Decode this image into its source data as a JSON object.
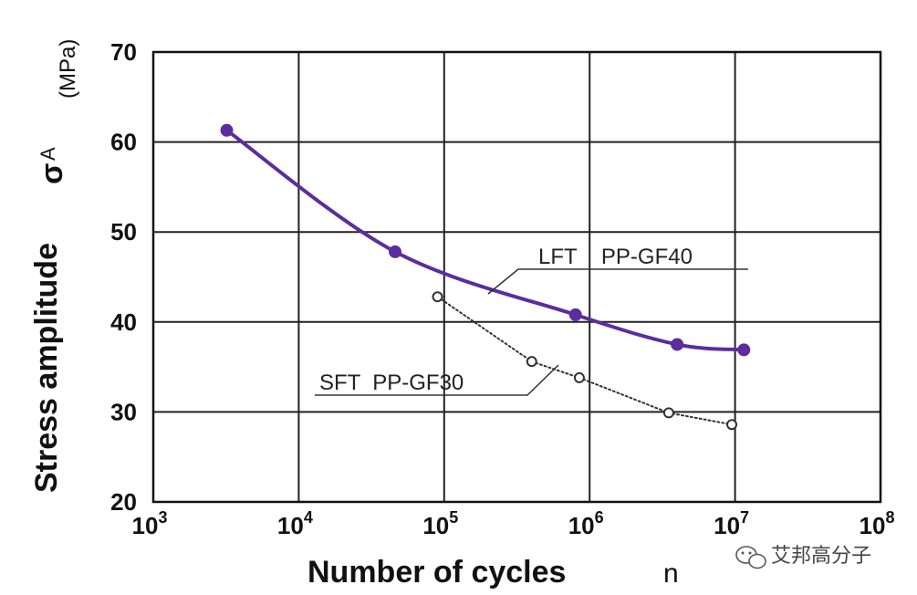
{
  "chart_data": {
    "type": "line",
    "xscale": "log",
    "xlim": [
      1000,
      100000000
    ],
    "ylim": [
      20,
      70
    ],
    "x_ticks": [
      {
        "value": 1000,
        "base": "10",
        "exp": "3"
      },
      {
        "value": 10000,
        "base": "10",
        "exp": "4"
      },
      {
        "value": 100000,
        "base": "10",
        "exp": "5"
      },
      {
        "value": 1000000,
        "base": "10",
        "exp": "6"
      },
      {
        "value": 10000000,
        "base": "10",
        "exp": "7"
      },
      {
        "value": 100000000,
        "base": "10",
        "exp": "8"
      }
    ],
    "y_ticks": [
      {
        "value": 20,
        "label": "20"
      },
      {
        "value": 30,
        "label": "30"
      },
      {
        "value": 40,
        "label": "40"
      },
      {
        "value": 50,
        "label": "50"
      },
      {
        "value": 60,
        "label": "60"
      },
      {
        "value": 70,
        "label": "70"
      }
    ],
    "xlabel": "Number of cycles",
    "xlabel_symbol": "n",
    "ylabel": "Stress amplitude",
    "ylabel_symbol": "σ",
    "ylabel_symbol_sub": "A",
    "yunit": "(MPa)",
    "grid": true,
    "series": [
      {
        "name": "LFT    PP-GF40",
        "color": "#5b2d9e",
        "style": "solid",
        "marker": "filled",
        "x": [
          3200,
          46000,
          800000,
          4000000,
          11500000
        ],
        "y": [
          61.3,
          47.8,
          40.8,
          37.5,
          36.9
        ]
      },
      {
        "name": "SFT  PP-GF30",
        "color": "#333333",
        "style": "dotted",
        "marker": "open",
        "x": [
          90000,
          400000,
          850000,
          3500000,
          9500000
        ],
        "y": [
          42.8,
          35.6,
          33.8,
          29.9,
          28.6
        ]
      }
    ]
  },
  "watermark": {
    "text": "艾邦高分子",
    "icon": "wechat-icon"
  }
}
